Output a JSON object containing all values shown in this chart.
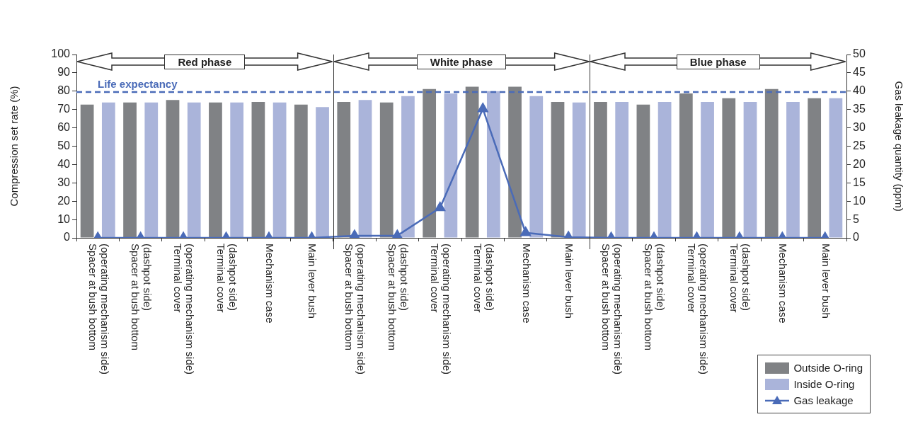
{
  "chart_data": {
    "type": "bar",
    "categories": [
      "Spacer at bush bottom\n(operating mechanism side)",
      "Spacer at bush bottom\n(dashpot side)",
      "Terminal cover\n(operating mechanism side)",
      "Terminal cover\n(dashpot side)",
      "Mechanism case",
      "Main lever bush",
      "Spacer at bush bottom\n(operating mechanism side)",
      "Spacer at bush bottom\n(dashpot side)",
      "Terminal cover\n(operating mechanism side)",
      "Terminal cover\n(dashpot side)",
      "Mechanism case",
      "Main lever bush",
      "Spacer at bush bottom\n(operating mechanism side)",
      "Spacer at bush bottom\n(dashpot side)",
      "Terminal cover\n(operating mechanism side)",
      "Terminal cover\n(dashpot side)",
      "Mechanism case",
      "Main lever bush"
    ],
    "series": [
      {
        "name": "Outside O-ring",
        "color": "#808285",
        "values": [
          72.7,
          73.8,
          75.2,
          73.8,
          74.1,
          72.7,
          74.1,
          73.8,
          81.2,
          82.4,
          82.4,
          74.1,
          74.1,
          72.7,
          78.8,
          76.2,
          81.2,
          76.2
        ]
      },
      {
        "name": "Inside O-ring",
        "color": "#aab4da",
        "values": [
          73.8,
          73.8,
          73.8,
          73.8,
          73.8,
          71.3,
          75.2,
          77.3,
          78.8,
          80,
          77.3,
          73.8,
          74.1,
          74.1,
          74.1,
          74.1,
          74.1,
          76.2
        ]
      },
      {
        "name": "Gas leakage",
        "type": "line",
        "axis": "y2",
        "color": "#4a6bb8",
        "values": [
          0,
          0,
          0,
          0,
          0,
          0,
          0.6,
          0.6,
          8.2,
          35.2,
          1.4,
          0.2,
          0,
          0,
          0,
          0,
          0,
          0
        ]
      }
    ],
    "ylabel": "Compression set rate (%)",
    "y2label": "Gas leakage quantity (ppm)",
    "ylim": [
      0,
      100
    ],
    "yticks": [
      0,
      10,
      20,
      30,
      40,
      50,
      60,
      70,
      80,
      90,
      100
    ],
    "y2lim": [
      0,
      50
    ],
    "y2ticks": [
      0,
      5,
      10,
      15,
      20,
      25,
      30,
      35,
      40,
      45,
      50
    ],
    "ref_lines": [
      {
        "axis": "y",
        "value": 79.5,
        "label": "Life expectancy",
        "color": "#4a6bb8",
        "line_style": "dashed"
      }
    ],
    "annotations": [
      "Red phase",
      "White phase",
      "Blue phase"
    ],
    "marker": "triangle",
    "legend": "bottom right",
    "grid": false
  }
}
